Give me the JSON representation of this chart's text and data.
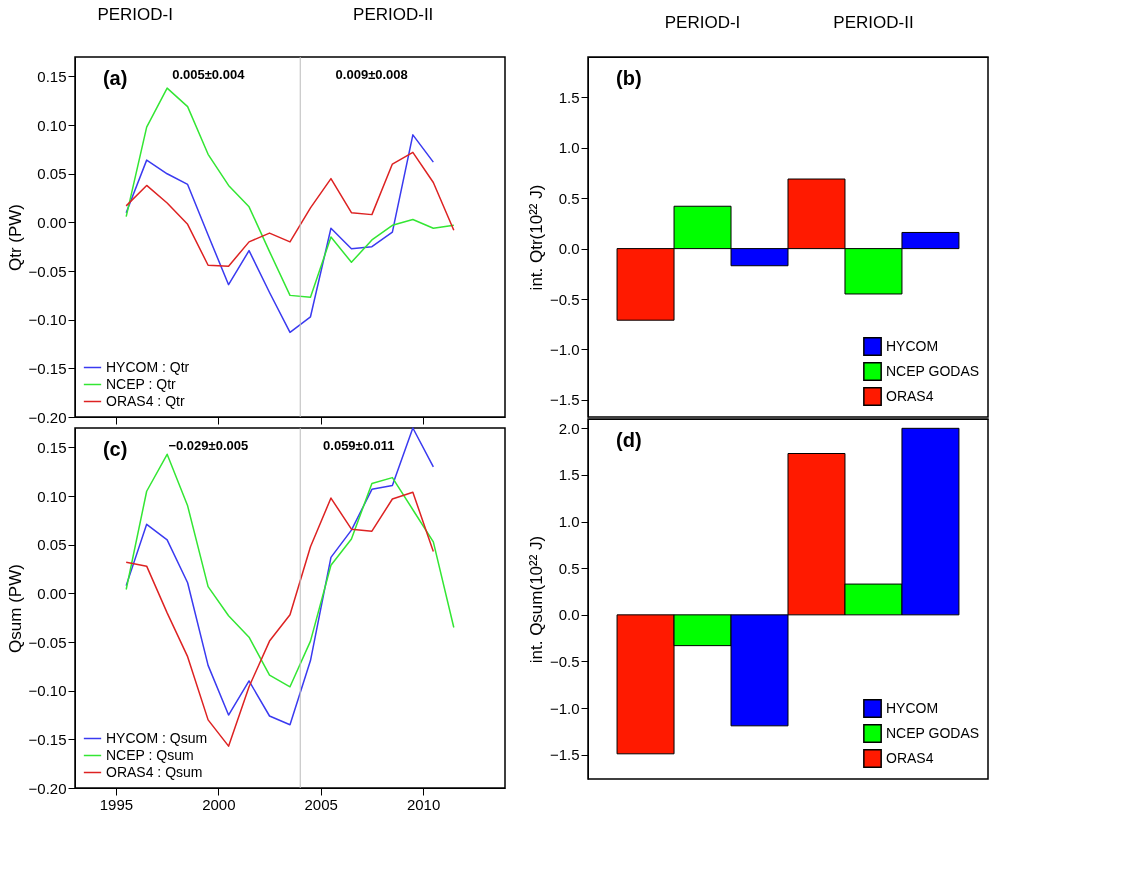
{
  "chart_data": [
    {
      "type": "line",
      "ylabel": "Qtr  (PW)",
      "x": [
        1995.5,
        1996.5,
        1997.5,
        1998.5,
        1999.5,
        2000.5,
        2001.5,
        2002.5,
        2003.5,
        2004.5,
        2005.5,
        2006.5,
        2007.5,
        2008.5,
        2009.5,
        2010.5,
        2011.5
      ],
      "series": [
        {
          "name": "HYCOM : Qtr",
          "color": "#3a3af0",
          "values": [
            0.01,
            0.064,
            0.05,
            0.039,
            -0.013,
            -0.064,
            -0.029,
            -0.072,
            -0.113,
            -0.097,
            -0.006,
            -0.027,
            -0.025,
            -0.01,
            0.09,
            0.062,
            null
          ]
        },
        {
          "name": "NCEP : Qtr",
          "color": "#33e633",
          "values": [
            0.006,
            0.098,
            0.138,
            0.119,
            0.07,
            0.038,
            0.016,
            -0.03,
            -0.075,
            -0.077,
            -0.015,
            -0.041,
            -0.018,
            -0.003,
            0.003,
            -0.006,
            -0.003
          ]
        },
        {
          "name": "ORAS4 : Qtr",
          "color": "#dd2222",
          "values": [
            0.017,
            0.038,
            0.02,
            -0.002,
            -0.044,
            -0.045,
            -0.02,
            -0.011,
            -0.02,
            0.015,
            0.045,
            0.01,
            0.008,
            0.06,
            0.072,
            0.041,
            -0.008
          ]
        }
      ],
      "xlim": [
        1993,
        2014
      ],
      "xticks": [
        1995,
        2000,
        2005,
        2010
      ],
      "ylim": [
        -0.2,
        0.17
      ],
      "yticks": [
        {
          "value": -0.2,
          "label": "−0.20"
        },
        {
          "value": -0.15,
          "label": "−0.15"
        },
        {
          "value": -0.1,
          "label": "−0.10"
        },
        {
          "value": -0.05,
          "label": "−0.05"
        },
        {
          "value": 0,
          "label": "0.00"
        },
        {
          "value": 0.05,
          "label": "0.05"
        },
        {
          "value": 0.1,
          "label": "0.10"
        },
        {
          "value": 0.15,
          "label": "0.15"
        }
      ],
      "tick_labels": "y",
      "legend": "bottom left",
      "ref_lines": [
        {
          "axis": "x",
          "value": 2004,
          "color": "#bbbbbb"
        }
      ],
      "annotations": [
        "PERIOD-I",
        "PERIOD-II",
        "(a)",
        "0.005±0.004",
        "0.009±0.008"
      ]
    },
    {
      "type": "bar",
      "ylabel": "int. Qtr(10²² J)",
      "categories": [
        "PERIOD-I",
        "PERIOD-II"
      ],
      "series": [
        {
          "name": "ORAS4",
          "color": "#ff1a00",
          "values": [
            -0.71,
            0.69
          ]
        },
        {
          "name": "NCEP GODAS",
          "color": "#00ff00",
          "values": [
            0.42,
            -0.45
          ]
        },
        {
          "name": "HYCOM",
          "color": "#0000ff",
          "values": [
            -0.17,
            0.16
          ]
        }
      ],
      "ylim": [
        -1.67,
        1.9
      ],
      "yticks": [
        {
          "value": -1.5,
          "label": "−1.5"
        },
        {
          "value": -1,
          "label": "−1.0"
        },
        {
          "value": -0.5,
          "label": "−0.5"
        },
        {
          "value": 0,
          "label": "0.0"
        },
        {
          "value": 0.5,
          "label": "0.5"
        },
        {
          "value": 1,
          "label": "1.0"
        },
        {
          "value": 1.5,
          "label": "1.5"
        }
      ],
      "legend": "bottom right",
      "annotations": [
        "(b)"
      ]
    },
    {
      "type": "line",
      "ylabel": "Qsum  (PW)",
      "x": [
        1995.5,
        1996.5,
        1997.5,
        1998.5,
        1999.5,
        2000.5,
        2001.5,
        2002.5,
        2003.5,
        2004.5,
        2005.5,
        2006.5,
        2007.5,
        2008.5,
        2009.5,
        2010.5,
        2011.5
      ],
      "series": [
        {
          "name": "HYCOM : Qsum",
          "color": "#3a3af0",
          "values": [
            0.008,
            0.071,
            0.055,
            0.011,
            -0.074,
            -0.125,
            -0.09,
            -0.126,
            -0.135,
            -0.069,
            0.037,
            0.065,
            0.107,
            0.111,
            0.17,
            0.13,
            null
          ]
        },
        {
          "name": "NCEP : Qsum",
          "color": "#33e633",
          "values": [
            0.004,
            0.105,
            0.143,
            0.09,
            0.007,
            -0.023,
            -0.045,
            -0.084,
            -0.096,
            -0.049,
            0.029,
            0.056,
            0.113,
            0.119,
            0.086,
            0.053,
            -0.035
          ]
        },
        {
          "name": "ORAS4 : Qsum",
          "color": "#dd2222",
          "values": [
            0.032,
            0.028,
            -0.02,
            -0.065,
            -0.13,
            -0.157,
            -0.096,
            -0.049,
            -0.022,
            0.048,
            0.098,
            0.066,
            0.064,
            0.097,
            0.104,
            0.043,
            null
          ]
        }
      ],
      "xlim": [
        1993,
        2014
      ],
      "xticks": [
        1995,
        2000,
        2005,
        2010
      ],
      "ylim": [
        -0.2,
        0.17
      ],
      "yticks": [
        {
          "value": -0.2,
          "label": "−0.20"
        },
        {
          "value": -0.15,
          "label": "−0.15"
        },
        {
          "value": -0.1,
          "label": "−0.10"
        },
        {
          "value": -0.05,
          "label": "−0.05"
        },
        {
          "value": 0,
          "label": "0.00"
        },
        {
          "value": 0.05,
          "label": "0.05"
        },
        {
          "value": 0.1,
          "label": "0.10"
        },
        {
          "value": 0.15,
          "label": "0.15"
        }
      ],
      "legend": "bottom left",
      "ref_lines": [
        {
          "axis": "x",
          "value": 2004,
          "color": "#bbbbbb"
        }
      ],
      "annotations": [
        "(c)",
        "−0.029±0.005",
        "0.059±0.011"
      ]
    },
    {
      "type": "bar",
      "ylabel": "int. Qsum(10²² J)",
      "categories": [
        null,
        null
      ],
      "series": [
        {
          "name": "ORAS4",
          "color": "#ff1a00",
          "values": [
            -1.49,
            1.73
          ]
        },
        {
          "name": "NCEP GODAS",
          "color": "#00ff00",
          "values": [
            -0.33,
            0.33
          ]
        },
        {
          "name": "HYCOM",
          "color": "#0000ff",
          "values": [
            -1.19,
            2.0
          ]
        }
      ],
      "ylim": [
        -1.76,
        2.1
      ],
      "yticks": [
        {
          "value": -1.5,
          "label": "−1.5"
        },
        {
          "value": -1,
          "label": "−1.0"
        },
        {
          "value": -0.5,
          "label": "−0.5"
        },
        {
          "value": 0,
          "label": "0.0"
        },
        {
          "value": 0.5,
          "label": "0.5"
        },
        {
          "value": 1,
          "label": "1.0"
        },
        {
          "value": 1.5,
          "label": "1.5"
        },
        {
          "value": 2,
          "label": "2.0"
        }
      ],
      "tick_labels": "y",
      "legend": "bottom right",
      "annotations": [
        "(d)"
      ]
    }
  ]
}
